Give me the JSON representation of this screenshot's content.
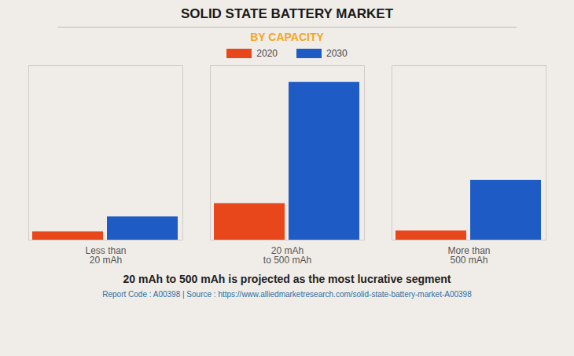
{
  "chart_data": {
    "type": "bar",
    "title": "SOLID STATE BATTERY MARKET",
    "subtitle": "BY CAPACITY",
    "categories": [
      "Less than\n20 mAh",
      "20 mAh\nto 500 mAh",
      "More than\n500 mAh"
    ],
    "series": [
      {
        "name": "2020",
        "color": "#E8471C",
        "values": [
          0.5,
          2.2,
          0.55
        ]
      },
      {
        "name": "2030",
        "color": "#1F5BC4",
        "values": [
          1.4,
          9.5,
          3.6
        ]
      }
    ],
    "ylim": [
      0,
      10.5
    ],
    "grid": false,
    "legend": "top",
    "tick_labels": "x",
    "caption": "20 mAh to 500 mAh is projected as the most lucrative segment",
    "source": "Report Code : A00398  |  Source : https://www.alliedmarketresearch.com/solid-state-battery-market-A00398"
  }
}
